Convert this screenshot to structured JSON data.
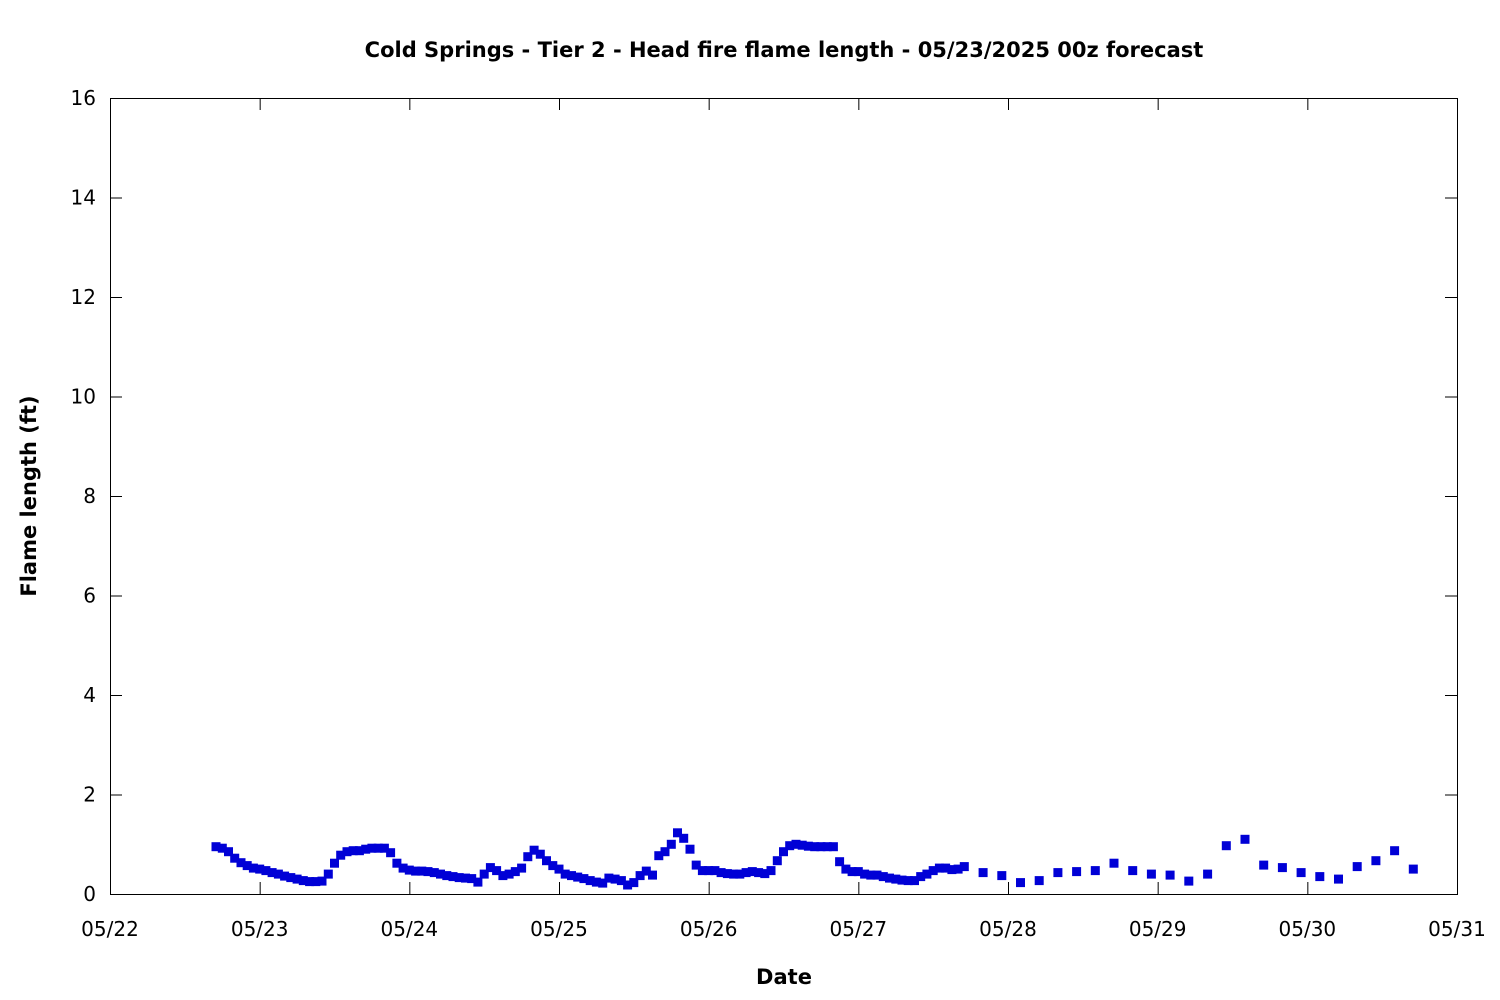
{
  "chart_data": {
    "type": "scatter",
    "title": "Cold Springs - Tier 2 - Head fire flame length - 05/23/2025 00z forecast",
    "xlabel": "Date",
    "ylabel": "Flame length (ft)",
    "xlim": [
      "2025-05-22T00:00",
      "2025-05-31T00:00"
    ],
    "ylim": [
      0,
      16
    ],
    "x_ticks": [
      "05/22",
      "05/23",
      "05/24",
      "05/25",
      "05/26",
      "05/27",
      "05/28",
      "05/29",
      "05/30",
      "05/31"
    ],
    "y_ticks": [
      "0",
      "2",
      "4",
      "6",
      "8",
      "10",
      "12",
      "14",
      "16"
    ],
    "grid": false,
    "marker_color": "#0000d6",
    "series": [
      {
        "x": [
          "2025-05-22T17:00",
          "2025-05-22T18:00",
          "2025-05-22T19:00",
          "2025-05-22T20:00",
          "2025-05-22T21:00",
          "2025-05-22T22:00",
          "2025-05-22T23:00",
          "2025-05-23T00:00",
          "2025-05-23T01:00",
          "2025-05-23T02:00",
          "2025-05-23T03:00",
          "2025-05-23T04:00",
          "2025-05-23T05:00",
          "2025-05-23T06:00",
          "2025-05-23T07:00",
          "2025-05-23T08:00",
          "2025-05-23T09:00",
          "2025-05-23T10:00",
          "2025-05-23T11:00",
          "2025-05-23T12:00",
          "2025-05-23T13:00",
          "2025-05-23T14:00",
          "2025-05-23T15:00",
          "2025-05-23T16:00",
          "2025-05-23T17:00",
          "2025-05-23T18:00",
          "2025-05-23T19:00",
          "2025-05-23T20:00",
          "2025-05-23T21:00",
          "2025-05-23T22:00",
          "2025-05-23T23:00",
          "2025-05-24T00:00",
          "2025-05-24T01:00",
          "2025-05-24T02:00",
          "2025-05-24T03:00",
          "2025-05-24T04:00",
          "2025-05-24T05:00",
          "2025-05-24T06:00",
          "2025-05-24T07:00",
          "2025-05-24T08:00",
          "2025-05-24T09:00",
          "2025-05-24T10:00",
          "2025-05-24T11:00",
          "2025-05-24T12:00",
          "2025-05-24T13:00",
          "2025-05-24T14:00",
          "2025-05-24T15:00",
          "2025-05-24T16:00",
          "2025-05-24T17:00",
          "2025-05-24T18:00",
          "2025-05-24T19:00",
          "2025-05-24T20:00",
          "2025-05-24T21:00",
          "2025-05-24T22:00",
          "2025-05-24T23:00",
          "2025-05-25T00:00",
          "2025-05-25T01:00",
          "2025-05-25T02:00",
          "2025-05-25T03:00",
          "2025-05-25T04:00",
          "2025-05-25T05:00",
          "2025-05-25T06:00",
          "2025-05-25T07:00",
          "2025-05-25T08:00",
          "2025-05-25T09:00",
          "2025-05-25T10:00",
          "2025-05-25T11:00",
          "2025-05-25T12:00",
          "2025-05-25T13:00",
          "2025-05-25T14:00",
          "2025-05-25T15:00",
          "2025-05-25T16:00",
          "2025-05-25T17:00",
          "2025-05-25T18:00",
          "2025-05-25T19:00",
          "2025-05-25T20:00",
          "2025-05-25T21:00",
          "2025-05-25T22:00",
          "2025-05-25T23:00",
          "2025-05-26T00:00",
          "2025-05-26T01:00",
          "2025-05-26T02:00",
          "2025-05-26T03:00",
          "2025-05-26T04:00",
          "2025-05-26T05:00",
          "2025-05-26T06:00",
          "2025-05-26T07:00",
          "2025-05-26T08:00",
          "2025-05-26T09:00",
          "2025-05-26T10:00",
          "2025-05-26T11:00",
          "2025-05-26T12:00",
          "2025-05-26T13:00",
          "2025-05-26T14:00",
          "2025-05-26T15:00",
          "2025-05-26T16:00",
          "2025-05-26T17:00",
          "2025-05-26T18:00",
          "2025-05-26T19:00",
          "2025-05-26T20:00",
          "2025-05-26T21:00",
          "2025-05-26T22:00",
          "2025-05-26T23:00",
          "2025-05-27T00:00",
          "2025-05-27T01:00",
          "2025-05-27T02:00",
          "2025-05-27T03:00",
          "2025-05-27T04:00",
          "2025-05-27T05:00",
          "2025-05-27T06:00",
          "2025-05-27T07:00",
          "2025-05-27T08:00",
          "2025-05-27T09:00",
          "2025-05-27T10:00",
          "2025-05-27T11:00",
          "2025-05-27T12:00",
          "2025-05-27T13:00",
          "2025-05-27T14:00",
          "2025-05-27T15:00",
          "2025-05-27T16:00",
          "2025-05-27T17:00",
          "2025-05-27T20:00",
          "2025-05-27T23:00",
          "2025-05-28T02:00",
          "2025-05-28T05:00",
          "2025-05-28T08:00",
          "2025-05-28T11:00",
          "2025-05-28T14:00",
          "2025-05-28T17:00",
          "2025-05-28T20:00",
          "2025-05-28T23:00",
          "2025-05-29T02:00",
          "2025-05-29T05:00",
          "2025-05-29T08:00",
          "2025-05-29T11:00",
          "2025-05-29T14:00",
          "2025-05-29T17:00",
          "2025-05-29T20:00",
          "2025-05-29T23:00",
          "2025-05-30T02:00",
          "2025-05-30T05:00",
          "2025-05-30T08:00",
          "2025-05-30T11:00",
          "2025-05-30T14:00",
          "2025-05-30T17:00"
        ],
        "y": [
          0.95,
          0.92,
          0.85,
          0.72,
          0.63,
          0.57,
          0.52,
          0.5,
          0.47,
          0.43,
          0.4,
          0.36,
          0.33,
          0.3,
          0.27,
          0.25,
          0.25,
          0.26,
          0.4,
          0.62,
          0.78,
          0.85,
          0.87,
          0.87,
          0.9,
          0.92,
          0.92,
          0.92,
          0.83,
          0.62,
          0.52,
          0.48,
          0.46,
          0.46,
          0.45,
          0.43,
          0.4,
          0.37,
          0.35,
          0.33,
          0.32,
          0.31,
          0.24,
          0.4,
          0.53,
          0.47,
          0.37,
          0.4,
          0.45,
          0.52,
          0.75,
          0.88,
          0.8,
          0.67,
          0.57,
          0.5,
          0.4,
          0.37,
          0.34,
          0.31,
          0.27,
          0.24,
          0.22,
          0.32,
          0.3,
          0.27,
          0.18,
          0.23,
          0.37,
          0.46,
          0.38,
          0.77,
          0.85,
          1.0,
          1.23,
          1.12,
          0.9,
          0.58,
          0.47,
          0.47,
          0.47,
          0.43,
          0.41,
          0.4,
          0.4,
          0.43,
          0.45,
          0.43,
          0.41,
          0.47,
          0.67,
          0.85,
          0.97,
          1.0,
          0.98,
          0.96,
          0.95,
          0.95,
          0.95,
          0.95,
          0.65,
          0.5,
          0.45,
          0.45,
          0.4,
          0.38,
          0.38,
          0.35,
          0.32,
          0.3,
          0.28,
          0.27,
          0.27,
          0.35,
          0.4,
          0.47,
          0.52,
          0.52,
          0.49,
          0.5,
          0.55,
          0.43,
          0.37,
          0.23,
          0.27,
          0.43,
          0.45,
          0.47,
          0.62,
          0.47,
          0.4,
          0.38,
          0.26,
          0.4,
          0.97,
          1.1,
          0.58,
          0.53,
          0.43,
          0.35,
          0.3,
          0.55,
          0.67,
          0.87,
          0.5
        ]
      }
    ]
  }
}
